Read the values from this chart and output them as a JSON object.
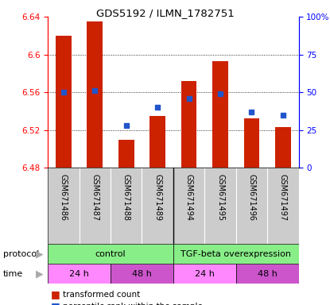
{
  "title": "GDS5192 / ILMN_1782751",
  "samples": [
    "GSM671486",
    "GSM671487",
    "GSM671488",
    "GSM671489",
    "GSM671494",
    "GSM671495",
    "GSM671496",
    "GSM671497"
  ],
  "red_values": [
    6.62,
    6.635,
    6.51,
    6.535,
    6.572,
    6.593,
    6.532,
    6.523
  ],
  "blue_values_pct": [
    50,
    51,
    28,
    40,
    46,
    49,
    37,
    35
  ],
  "ylim_left": [
    6.48,
    6.64
  ],
  "ylim_right": [
    0,
    100
  ],
  "yticks_left": [
    6.48,
    6.52,
    6.56,
    6.6,
    6.64
  ],
  "ytick_labels_left": [
    "6.48",
    "6.52",
    "6.56",
    "6.6",
    "6.64"
  ],
  "yticks_right": [
    0,
    25,
    50,
    75,
    100
  ],
  "ytick_labels_right": [
    "0",
    "25",
    "50",
    "75",
    "100%"
  ],
  "bar_color": "#cc2200",
  "dot_color": "#2255cc",
  "bar_bottom": 6.48,
  "sample_bg_color": "#cccccc",
  "protocol_color": "#88ee88",
  "time_color_light": "#ff88ff",
  "time_color_dark": "#cc55cc",
  "arrow_color": "#aaaaaa"
}
